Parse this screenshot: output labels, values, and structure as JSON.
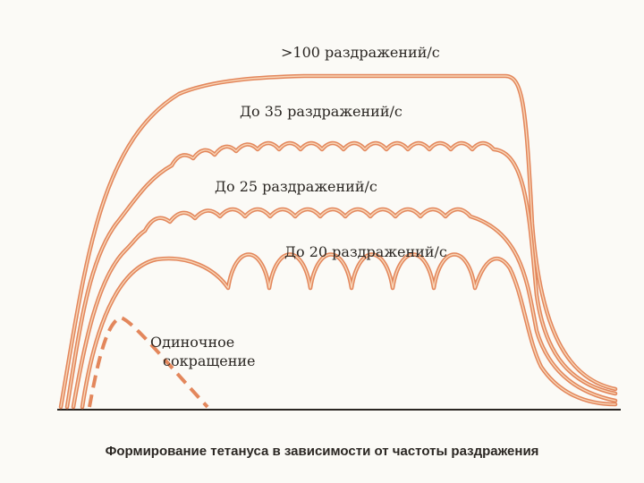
{
  "curves": [
    {
      "label": ">100 раздражений/с"
    },
    {
      "label": "До 35 раздражений/с"
    },
    {
      "label": "До 25 раздражений/с"
    },
    {
      "label": "До 20 раздражений/с"
    }
  ],
  "single_twitch": {
    "lines": [
      "Одиночное",
      "сокращение"
    ]
  },
  "caption": "Формирование тетануса в зависимости от частоты раздражения"
}
